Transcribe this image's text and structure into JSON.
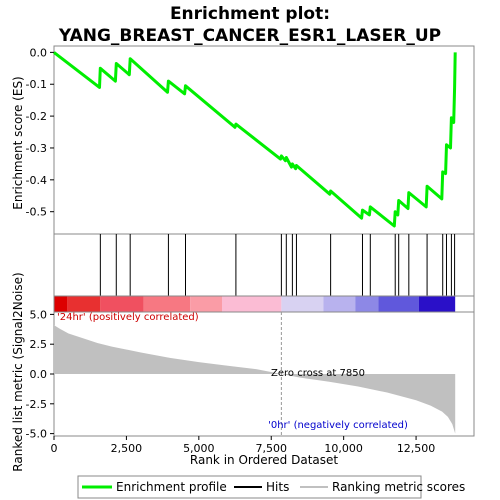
{
  "chart_data": {
    "type": "line",
    "title_line1": "Enrichment plot:",
    "title_line2": "YANG_BREAST_CANCER_ESR1_LASER_UP",
    "xlabel": "Rank in Ordered Dataset",
    "ylabel_top": "Enrichment score (ES)",
    "ylabel_bottom": "Ranked list metric (Signal2Noise)",
    "xlim": [
      0,
      14500
    ],
    "x_ticks": [
      {
        "value": 0,
        "label": "0"
      },
      {
        "value": 2500,
        "label": "2,500"
      },
      {
        "value": 5000,
        "label": "5,000"
      },
      {
        "value": 7500,
        "label": "7,500"
      },
      {
        "value": 10000,
        "label": "10,000"
      },
      {
        "value": 12500,
        "label": "12,500"
      }
    ],
    "es_ylim": [
      -0.57,
      0.02
    ],
    "es_ticks": [
      {
        "value": 0.0,
        "label": "0.0"
      },
      {
        "value": -0.1,
        "label": "-0.1"
      },
      {
        "value": -0.2,
        "label": "-0.2"
      },
      {
        "value": -0.3,
        "label": "-0.3"
      },
      {
        "value": -0.4,
        "label": "-0.4"
      },
      {
        "value": -0.5,
        "label": "-0.5"
      }
    ],
    "metric_ylim": [
      -5.2,
      5.2
    ],
    "metric_ticks": [
      {
        "value": 5.0,
        "label": "5.0"
      },
      {
        "value": 2.5,
        "label": "2.5"
      },
      {
        "value": 0.0,
        "label": "0.0"
      },
      {
        "value": -2.5,
        "label": "-2.5"
      },
      {
        "value": -5.0,
        "label": "-5.0"
      }
    ],
    "total_rank": 13850,
    "zero_cross": 7850,
    "zero_cross_label": "Zero cross at 7850",
    "pos_label": "'24hr' (positively correlated)",
    "neg_label": "'0hr' (negatively correlated)",
    "hits": [
      1600,
      2150,
      2630,
      3950,
      4540,
      6280,
      7850,
      8020,
      8230,
      8370,
      9550,
      10650,
      10920,
      11780,
      11900,
      12250,
      12880,
      13420,
      13550,
      13720,
      13830
    ],
    "es_series": {
      "name": "Enrichment profile",
      "x": [
        0,
        1570,
        1600,
        2120,
        2150,
        2600,
        2630,
        3920,
        3950,
        4510,
        4540,
        6250,
        6280,
        7820,
        7850,
        7990,
        8020,
        8200,
        8230,
        8340,
        8370,
        9520,
        9550,
        10620,
        10650,
        10890,
        10920,
        11750,
        11780,
        11870,
        11900,
        12220,
        12250,
        12850,
        12880,
        13390,
        13420,
        13520,
        13550,
        13690,
        13720,
        13800,
        13830,
        13850
      ],
      "y": [
        0.0,
        -0.11,
        -0.05,
        -0.09,
        -0.035,
        -0.07,
        -0.02,
        -0.125,
        -0.09,
        -0.13,
        -0.105,
        -0.235,
        -0.225,
        -0.335,
        -0.325,
        -0.34,
        -0.33,
        -0.36,
        -0.35,
        -0.365,
        -0.355,
        -0.445,
        -0.435,
        -0.52,
        -0.495,
        -0.51,
        -0.485,
        -0.545,
        -0.5,
        -0.51,
        -0.465,
        -0.49,
        -0.44,
        -0.485,
        -0.42,
        -0.46,
        -0.375,
        -0.38,
        -0.29,
        -0.3,
        -0.205,
        -0.22,
        -0.11,
        0.0
      ]
    },
    "metric_curve": {
      "x": [
        0,
        200,
        500,
        1000,
        1500,
        2000,
        3000,
        4000,
        5000,
        6000,
        7000,
        7850,
        8500,
        9500,
        10500,
        11500,
        12500,
        13000,
        13400,
        13600,
        13750,
        13850
      ],
      "y": [
        4.1,
        3.8,
        3.4,
        3.0,
        2.6,
        2.3,
        1.8,
        1.35,
        1.0,
        0.7,
        0.4,
        0.0,
        -0.3,
        -0.65,
        -1.05,
        -1.55,
        -2.2,
        -2.65,
        -3.15,
        -3.6,
        -4.2,
        -5.0
      ]
    },
    "legend": [
      {
        "label": "Enrichment profile",
        "color": "#00ee00"
      },
      {
        "label": "Hits",
        "color": "#000000"
      },
      {
        "label": "Ranking metric scores",
        "color": "#c0c0c0"
      }
    ],
    "colors": {
      "es_line": "#00ee00",
      "hit_line": "#000000",
      "metric_fill": "#c0c0c0",
      "pos_label": "#cc0000",
      "neg_label": "#0000cc",
      "zero_cross_line": "#999999"
    },
    "heat_band": [
      {
        "x0": 0,
        "x1": 450,
        "color": "#dd0000"
      },
      {
        "x0": 450,
        "x1": 1600,
        "color": "#e83030"
      },
      {
        "x0": 1600,
        "x1": 3100,
        "color": "#f05060"
      },
      {
        "x0": 3100,
        "x1": 4700,
        "color": "#f77882"
      },
      {
        "x0": 4700,
        "x1": 5800,
        "color": "#fa9ca6"
      },
      {
        "x0": 5800,
        "x1": 7850,
        "color": "#fbbcd4"
      },
      {
        "x0": 7850,
        "x1": 9300,
        "color": "#d8d2f2"
      },
      {
        "x0": 9300,
        "x1": 10400,
        "color": "#b8b2ee"
      },
      {
        "x0": 10400,
        "x1": 11200,
        "color": "#8d88e6"
      },
      {
        "x0": 11200,
        "x1": 12600,
        "color": "#6058dc"
      },
      {
        "x0": 12600,
        "x1": 13850,
        "color": "#2a10c8"
      }
    ]
  }
}
